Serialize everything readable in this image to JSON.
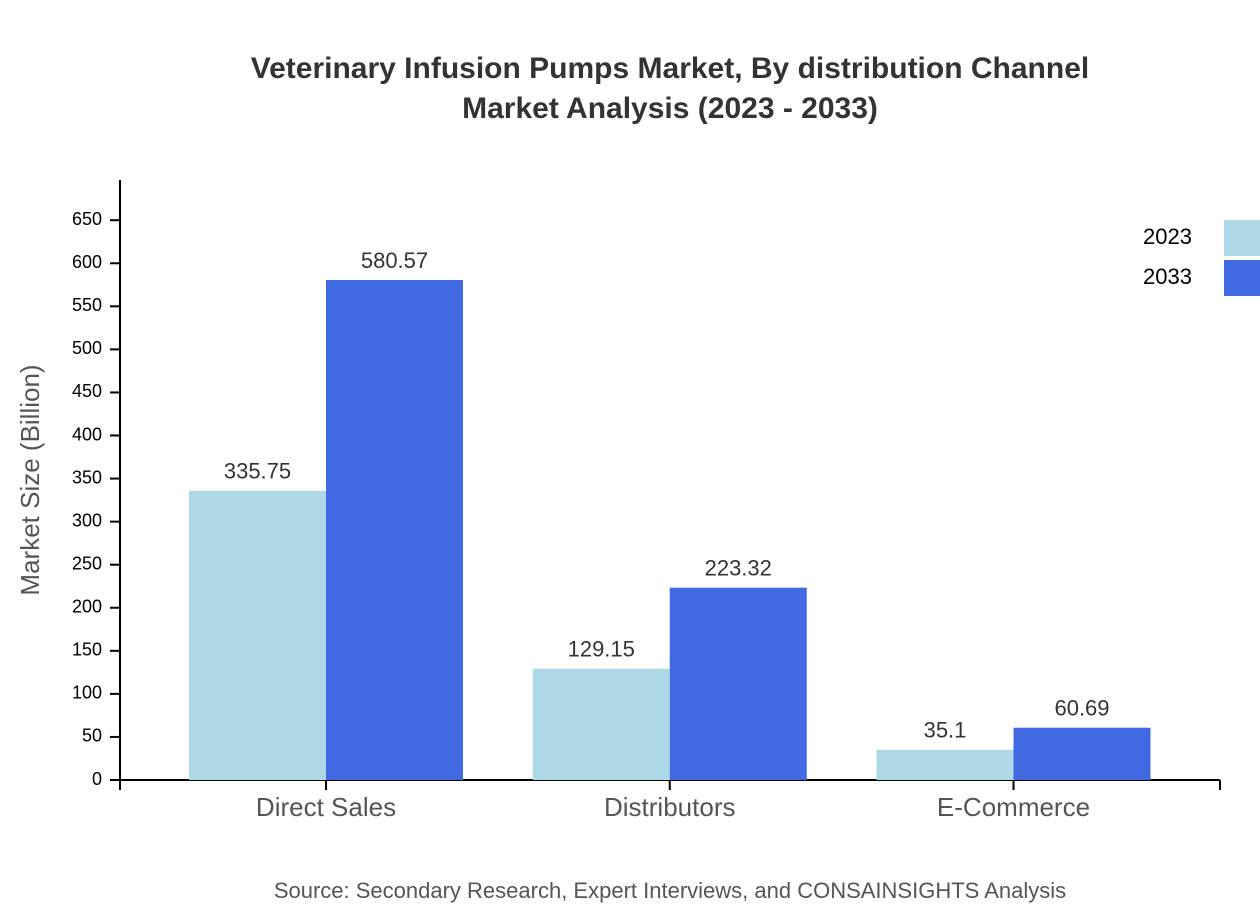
{
  "chart_data": {
    "type": "bar",
    "title": [
      "Veterinary Infusion Pumps Market, By distribution Channel",
      "Market Analysis (2023 - 2033)"
    ],
    "y_label": "Market Size (Billion)",
    "source": "Source: Secondary Research, Expert Interviews, and CONSAINSIGHTS Analysis",
    "categories": [
      "Direct Sales",
      "Distributors",
      "E-Commerce"
    ],
    "series": [
      {
        "name": "2023",
        "color": "#add8e6",
        "values": [
          335.75,
          129.15,
          35.1
        ]
      },
      {
        "name": "2033",
        "color": "#4169e1",
        "values": [
          580.57,
          223.32,
          60.69
        ]
      }
    ],
    "ylim": [
      0,
      696.68
    ],
    "yticks": [
      0,
      50,
      100,
      150,
      200,
      250,
      300,
      350,
      400,
      450,
      500,
      550,
      600,
      650
    ],
    "legend": "top-right"
  }
}
